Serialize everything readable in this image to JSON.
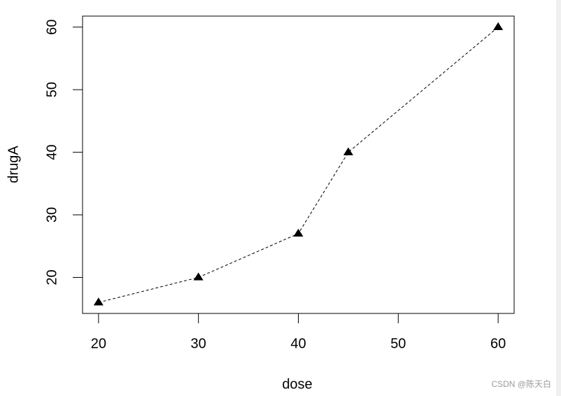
{
  "chart_data": {
    "type": "line",
    "x_label": "dose",
    "y_label": "drugA",
    "x": [
      20,
      30,
      40,
      45,
      60
    ],
    "series": [
      {
        "name": "drugA",
        "color": "#000000",
        "values": [
          16,
          20,
          27,
          40,
          60
        ]
      }
    ],
    "line_style": "dashed",
    "marker": "triangle",
    "xlim": [
      18.4,
      61.6
    ],
    "ylim": [
      14.24,
      61.76
    ],
    "xticks": [
      20,
      30,
      40,
      50,
      60
    ],
    "yticks": [
      20,
      30,
      40,
      50,
      60
    ],
    "grid": false
  },
  "watermark": "CSDN @陈天白"
}
